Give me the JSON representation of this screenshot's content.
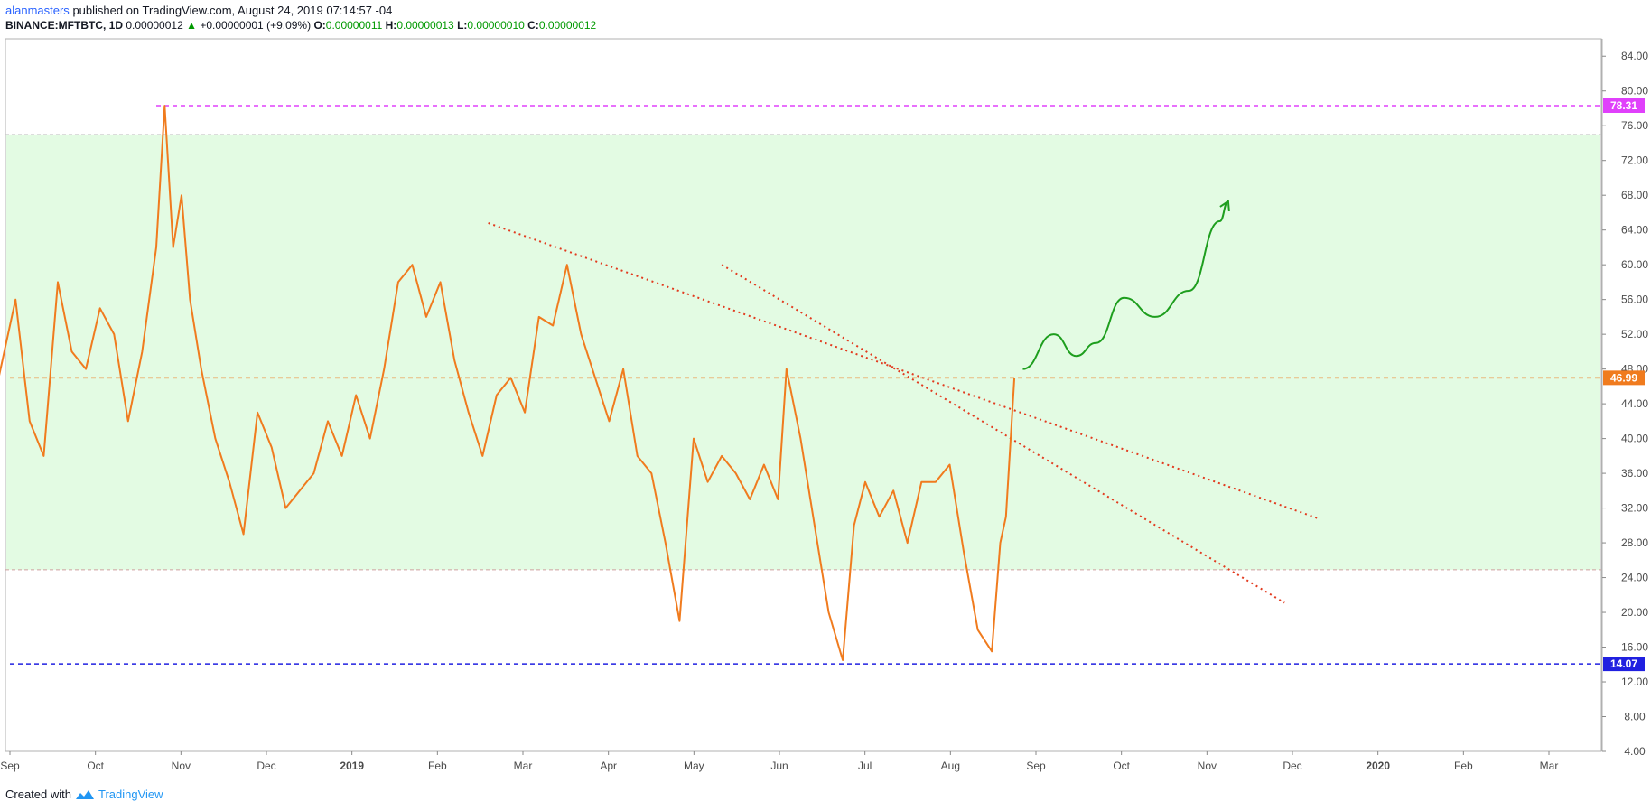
{
  "header": {
    "author": "alanmasters",
    "published": "published on TradingView.com, August 24, 2019 07:14:57 -04",
    "symbol": "BINANCE:MFTBTC, 1D",
    "price": "0.00000012",
    "change": "+0.00000001 (+9.09%)",
    "o_label": "O:",
    "o_value": "0.00000011",
    "h_label": "H:",
    "h_value": "0.00000013",
    "l_label": "L:",
    "l_value": "0.00000010",
    "c_label": "C:",
    "c_value": "0.00000012"
  },
  "footer": {
    "created_with": "Created with",
    "brand": "TradingView"
  },
  "colors": {
    "price_line": "#f07b1e",
    "zone_fill": "#e3fbe3",
    "resistance": "#e040fb",
    "support": "#2020e0",
    "current": "#f07b1e",
    "trendline": "#e23a1e",
    "projection": "#1e9e1e"
  },
  "chart_data": {
    "type": "line",
    "ylim": [
      4,
      86
    ],
    "y_ticks": [
      "84.00",
      "80.00",
      "76.00",
      "72.00",
      "68.00",
      "64.00",
      "60.00",
      "56.00",
      "52.00",
      "48.00",
      "44.00",
      "40.00",
      "36.00",
      "32.00",
      "28.00",
      "24.00",
      "20.00",
      "16.00",
      "12.00",
      "8.00",
      "4.00"
    ],
    "x_ticks": [
      {
        "label": "Sep",
        "bold": false
      },
      {
        "label": "Oct",
        "bold": false
      },
      {
        "label": "Nov",
        "bold": false
      },
      {
        "label": "Dec",
        "bold": false
      },
      {
        "label": "2019",
        "bold": true
      },
      {
        "label": "Feb",
        "bold": false
      },
      {
        "label": "Mar",
        "bold": false
      },
      {
        "label": "Apr",
        "bold": false
      },
      {
        "label": "May",
        "bold": false
      },
      {
        "label": "Jun",
        "bold": false
      },
      {
        "label": "Jul",
        "bold": false
      },
      {
        "label": "Aug",
        "bold": false
      },
      {
        "label": "Sep",
        "bold": false
      },
      {
        "label": "Oct",
        "bold": false
      },
      {
        "label": "Nov",
        "bold": false
      },
      {
        "label": "Dec",
        "bold": false
      },
      {
        "label": "2020",
        "bold": true
      },
      {
        "label": "Feb",
        "bold": false
      },
      {
        "label": "Mar",
        "bold": false
      }
    ],
    "resistance_level": {
      "label": "78.31",
      "value": 78.31
    },
    "current_level": {
      "label": "46.99",
      "value": 46.99
    },
    "support_level": {
      "label": "14.07",
      "value": 14.07
    },
    "zone": [
      24.9,
      75.0
    ],
    "series": [
      {
        "x": [
          "2018-08-28",
          "2018-09-03",
          "2018-09-08",
          "2018-09-13",
          "2018-09-18",
          "2018-09-23",
          "2018-09-28",
          "2018-10-03",
          "2018-10-08",
          "2018-10-13",
          "2018-10-18",
          "2018-10-23",
          "2018-10-26",
          "2018-10-29",
          "2018-11-01",
          "2018-11-04",
          "2018-11-08",
          "2018-11-13",
          "2018-11-18",
          "2018-11-23",
          "2018-11-28",
          "2018-12-03",
          "2018-12-08",
          "2018-12-13",
          "2018-12-18",
          "2018-12-23",
          "2018-12-28",
          "2019-01-02",
          "2019-01-07",
          "2019-01-12",
          "2019-01-17",
          "2019-01-22",
          "2019-01-27",
          "2019-02-01",
          "2019-02-06",
          "2019-02-11",
          "2019-02-16",
          "2019-02-21",
          "2019-02-26",
          "2019-03-03",
          "2019-03-08",
          "2019-03-13",
          "2019-03-18",
          "2019-03-23",
          "2019-03-28",
          "2019-04-02",
          "2019-04-07",
          "2019-04-12",
          "2019-04-17",
          "2019-04-22",
          "2019-04-27",
          "2019-05-02",
          "2019-05-07",
          "2019-05-12",
          "2019-05-17",
          "2019-05-22",
          "2019-05-27",
          "2019-06-01",
          "2019-06-04",
          "2019-06-09",
          "2019-06-14",
          "2019-06-19",
          "2019-06-24",
          "2019-06-28",
          "2019-07-02",
          "2019-07-07",
          "2019-07-12",
          "2019-07-17",
          "2019-07-22",
          "2019-07-27",
          "2019-08-01",
          "2019-08-06",
          "2019-08-11",
          "2019-08-16",
          "2019-08-19",
          "2019-08-21",
          "2019-08-24"
        ],
        "values": [
          47,
          56,
          42,
          38,
          58,
          50,
          48,
          55,
          52,
          42,
          50,
          62,
          78.3,
          62,
          68,
          56,
          48,
          40,
          35,
          29,
          43,
          39,
          32,
          34,
          36,
          42,
          38,
          45,
          40,
          48,
          58,
          60,
          54,
          58,
          49,
          43,
          38,
          45,
          47,
          43,
          54,
          53,
          60,
          52,
          47,
          42,
          48,
          38,
          36,
          28,
          19,
          40,
          35,
          38,
          36,
          33,
          37,
          33,
          48,
          40,
          30,
          20,
          14.5,
          30,
          35,
          31,
          34,
          28,
          35,
          35,
          37,
          27,
          18,
          15.5,
          28,
          31,
          46.99
        ]
      }
    ],
    "trendlines": [
      {
        "x1": "2019-02-18",
        "y1": 64.8,
        "x2": "2019-12-10",
        "y2": 30.8
      },
      {
        "x1": "2019-05-12",
        "y1": 60.0,
        "x2": "2019-11-28",
        "y2": 21.1
      }
    ],
    "projection": [
      {
        "x": "2019-08-27",
        "y": 48.0
      },
      {
        "x": "2019-09-07",
        "y": 52.0
      },
      {
        "x": "2019-09-15",
        "y": 49.5
      },
      {
        "x": "2019-09-22",
        "y": 51.0
      },
      {
        "x": "2019-10-02",
        "y": 56.2
      },
      {
        "x": "2019-10-13",
        "y": 54.0
      },
      {
        "x": "2019-10-25",
        "y": 57.0
      },
      {
        "x": "2019-11-05",
        "y": 65.0
      },
      {
        "x": "2019-11-08",
        "y": 67.3
      }
    ]
  }
}
